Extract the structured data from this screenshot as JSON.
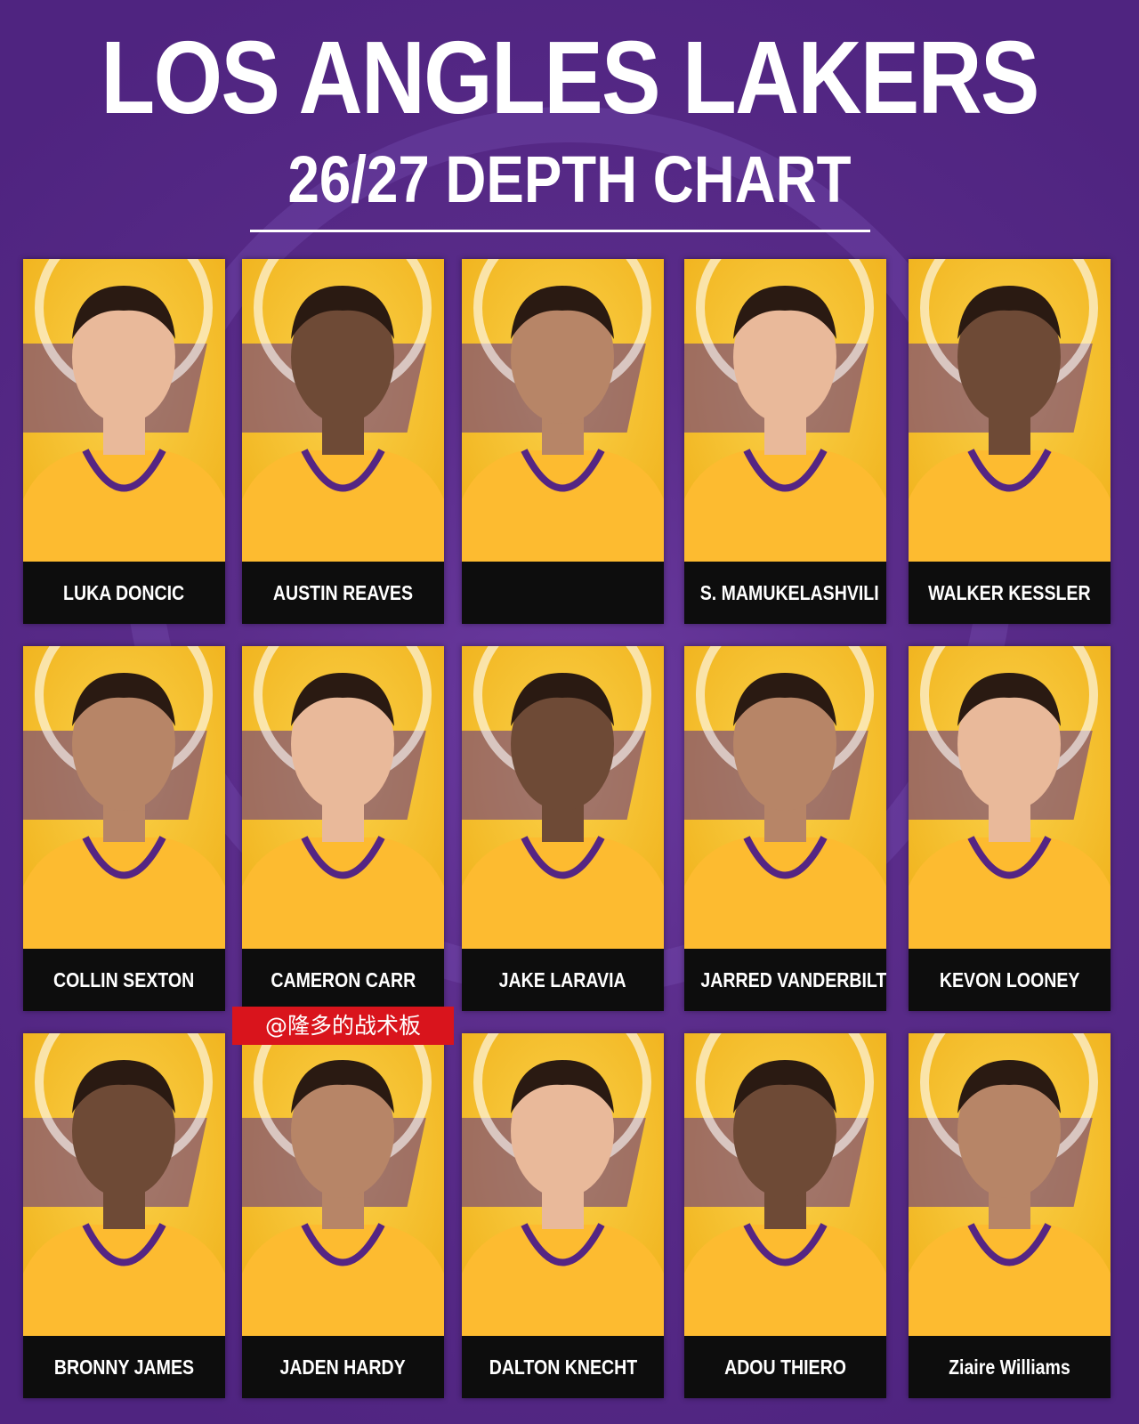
{
  "header": {
    "title": "LOS ANGLES LAKERS",
    "subtitle": "26/27 DEPTH CHART"
  },
  "players": [
    {
      "name": "LUKA DONCIC"
    },
    {
      "name": "AUSTIN REAVES"
    },
    {
      "name": null
    },
    {
      "name": "S. MAMUKELASHVILI"
    },
    {
      "name": "WALKER KESSLER"
    },
    {
      "name": "COLLIN SEXTON"
    },
    {
      "name": "CAMERON CARR"
    },
    {
      "name": "JAKE LARAVIA"
    },
    {
      "name": "JARRED VANDERBILT"
    },
    {
      "name": "KEVON LOONEY"
    },
    {
      "name": "BRONNY JAMES"
    },
    {
      "name": "JADEN HARDY"
    },
    {
      "name": "DALTON KNECHT"
    },
    {
      "name": "ADOU THIERO"
    },
    {
      "name": "Ziaire Williams"
    }
  ],
  "watermark": "@隆多的战术板"
}
